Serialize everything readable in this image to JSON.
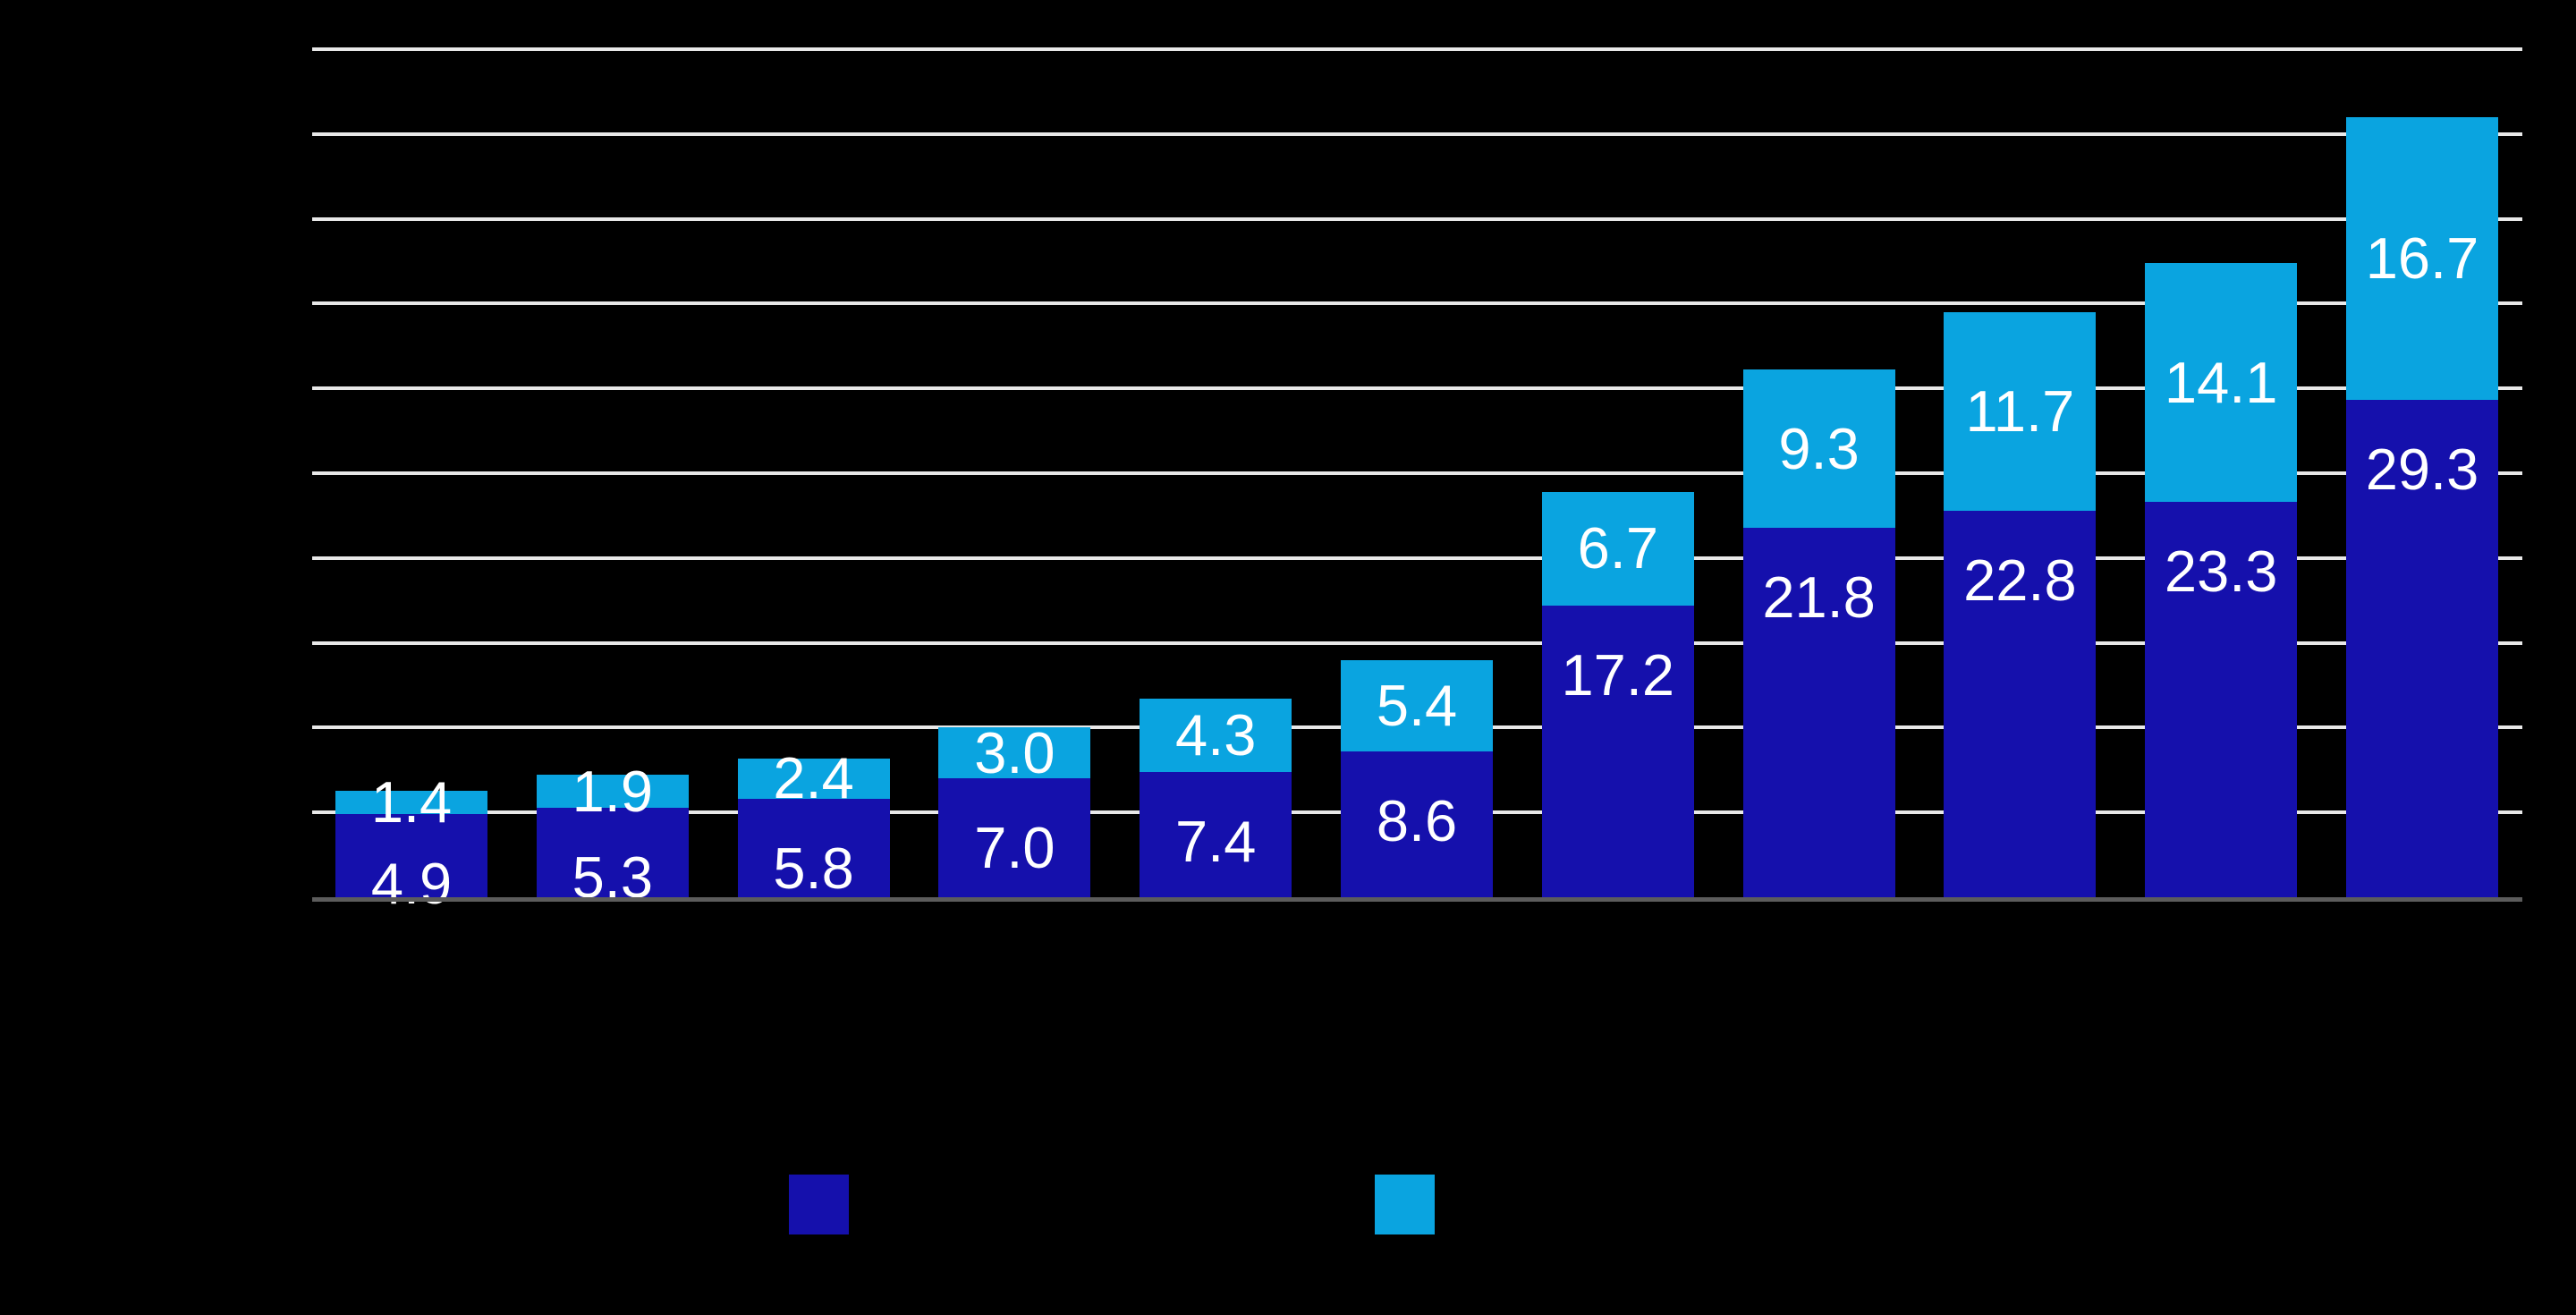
{
  "background_color": "#000000",
  "chart_data": {
    "type": "bar",
    "variant": "stacked-column",
    "bar_count": 11,
    "series": [
      {
        "name": "dark-blue-series",
        "color": "#1510AC",
        "values": [
          4.9,
          5.3,
          5.8,
          7.0,
          7.4,
          8.6,
          17.2,
          21.8,
          22.8,
          23.3,
          29.3
        ],
        "labels": [
          "4.9",
          "5.3",
          "5.8",
          "7.0",
          "7.4",
          "8.6",
          "17.2",
          "21.8",
          "22.8",
          "23.3",
          "29.3"
        ]
      },
      {
        "name": "light-blue-series",
        "color": "#0AA4E0",
        "values": [
          1.4,
          1.9,
          2.4,
          3.0,
          4.3,
          5.4,
          6.7,
          9.3,
          11.7,
          14.1,
          16.7
        ],
        "labels": [
          "1.4",
          "1.9",
          "2.4",
          "3.0",
          "4.3",
          "5.4",
          "6.7",
          "9.3",
          "11.7",
          "14.1",
          "16.7"
        ]
      }
    ],
    "data_label_color": "#FFFFFF",
    "ylim": [
      0,
      50
    ],
    "y_gridline_step": 5,
    "gridlines_visible": true,
    "gridline_color": "#E8E8E8",
    "baseline_color": "#5C5C5C",
    "axis_tick_labels_visible": false,
    "title_visible": false,
    "legend": {
      "position": "bottom",
      "labels_visible": false,
      "items": [
        {
          "name": "dark-blue-series",
          "color": "#1510AC"
        },
        {
          "name": "light-blue-series",
          "color": "#0AA4E0"
        }
      ]
    }
  }
}
